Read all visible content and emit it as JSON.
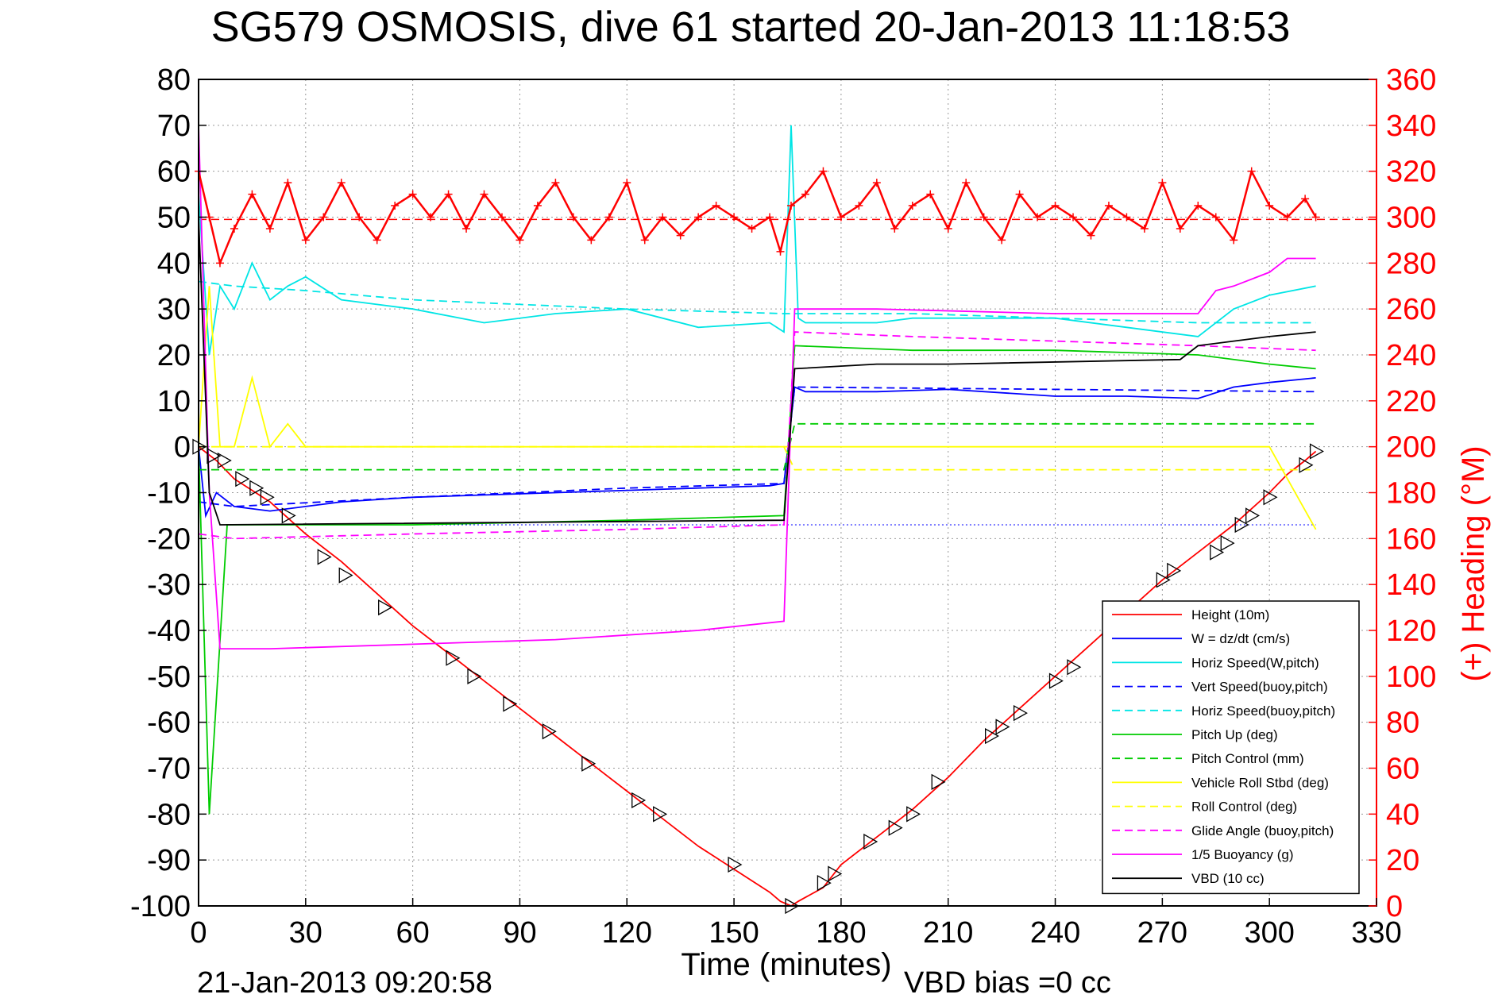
{
  "chart_data": {
    "type": "line",
    "title": "SG579 OSMOSIS, dive 61 started 20-Jan-2013 11:18:53",
    "xlabel": "Time (minutes)",
    "ylabel": "",
    "y2label": "(+) Heading (°M)",
    "xlim": [
      0,
      330
    ],
    "ylim": [
      -100,
      80
    ],
    "y2lim": [
      0,
      360
    ],
    "grid": true,
    "legend_position": "bottom-right",
    "x_ticks": [
      "0",
      "30",
      "60",
      "90",
      "120",
      "150",
      "180",
      "210",
      "240",
      "270",
      "300",
      "330"
    ],
    "y_ticks": [
      "80",
      "70",
      "60",
      "50",
      "40",
      "30",
      "20",
      "10",
      "0",
      "-10",
      "-20",
      "-30",
      "-40",
      "-50",
      "-60",
      "-70",
      "-80",
      "-90",
      "-100"
    ],
    "y2_ticks": [
      "360",
      "340",
      "320",
      "300",
      "280",
      "260",
      "240",
      "220",
      "200",
      "180",
      "160",
      "140",
      "120",
      "100",
      "80",
      "60",
      "40",
      "20",
      "0"
    ],
    "footer_left": "21-Jan-2013 09:20:58",
    "footer_right": "VBD bias =0 cc",
    "series": [
      {
        "name": "Height (10m)",
        "color": "#ff0000",
        "style": "solid",
        "x": [
          0,
          5,
          10,
          20,
          30,
          40,
          50,
          60,
          70,
          80,
          90,
          100,
          110,
          120,
          130,
          140,
          150,
          160,
          163,
          166,
          168,
          175,
          180,
          190,
          200,
          210,
          220,
          230,
          240,
          250,
          260,
          270,
          280,
          290,
          300,
          305,
          310,
          313
        ],
        "y": [
          0,
          -3,
          -7,
          -12,
          -19,
          -25,
          -32,
          -39,
          -45,
          -51,
          -57,
          -63,
          -69,
          -75,
          -81,
          -87,
          -92,
          -97,
          -99,
          -100,
          -99,
          -96,
          -91,
          -85,
          -79,
          -72,
          -64,
          -57,
          -50,
          -43,
          -36,
          -29,
          -23,
          -17,
          -10,
          -6,
          -3,
          -1
        ]
      },
      {
        "name": "W = dz/dt (cm/s)",
        "color": "#0000ff",
        "style": "solid",
        "x": [
          0,
          2,
          5,
          10,
          20,
          30,
          40,
          60,
          80,
          100,
          120,
          140,
          160,
          164,
          167,
          170,
          190,
          210,
          240,
          260,
          280,
          290,
          300,
          313
        ],
        "y": [
          0,
          -15,
          -10,
          -13,
          -14,
          -13,
          -12,
          -11,
          -10.5,
          -10,
          -9.5,
          -9,
          -8.5,
          -8,
          13,
          12,
          12,
          12.5,
          11,
          11,
          10.5,
          13,
          14,
          15
        ]
      },
      {
        "name": "Horiz Speed(W,pitch)",
        "color": "#00e5e5",
        "style": "solid",
        "x": [
          0,
          3,
          6,
          10,
          15,
          20,
          25,
          30,
          40,
          60,
          80,
          100,
          120,
          140,
          160,
          164,
          166,
          168,
          170,
          190,
          200,
          220,
          240,
          260,
          280,
          290,
          300,
          313
        ],
        "y": [
          55,
          20,
          35,
          30,
          40,
          32,
          35,
          37,
          32,
          30,
          27,
          29,
          30,
          26,
          27,
          25,
          70,
          28,
          27,
          27,
          28,
          28,
          28,
          26,
          24,
          30,
          33,
          35
        ]
      },
      {
        "name": "Vert Speed(buoy,pitch)",
        "color": "#0000ff",
        "style": "dashed",
        "x": [
          0,
          10,
          60,
          120,
          164,
          167,
          313
        ],
        "y": [
          -12,
          -13,
          -11,
          -9,
          -8,
          13,
          12
        ]
      },
      {
        "name": "Horiz Speed(buoy,pitch)",
        "color": "#00e5e5",
        "style": "dashed",
        "x": [
          0,
          10,
          30,
          60,
          90,
          120,
          164,
          167,
          200,
          240,
          280,
          313
        ],
        "y": [
          36,
          35,
          34,
          32,
          31,
          30,
          29,
          29,
          29,
          28,
          27,
          27
        ]
      },
      {
        "name": "Pitch Up (deg)",
        "color": "#00cc00",
        "style": "solid",
        "x": [
          0,
          3,
          8,
          20,
          60,
          120,
          164,
          167,
          200,
          240,
          280,
          300,
          313
        ],
        "y": [
          0,
          -80,
          -17,
          -17,
          -17,
          -16,
          -15,
          22,
          21,
          21,
          20,
          18,
          17
        ]
      },
      {
        "name": "Pitch Control (mm)",
        "color": "#00cc00",
        "style": "dashed",
        "x": [
          0,
          5,
          164,
          167,
          313
        ],
        "y": [
          -5,
          -5,
          -5,
          5,
          5
        ]
      },
      {
        "name": "Vehicle Roll Stbd (deg)",
        "color": "#ffff00",
        "style": "solid",
        "x": [
          0,
          3,
          6,
          10,
          15,
          20,
          25,
          30,
          40,
          60,
          80,
          100,
          120,
          140,
          160,
          164,
          167,
          170,
          200,
          240,
          280,
          300,
          313
        ],
        "y": [
          0,
          35,
          0,
          0,
          15,
          0,
          5,
          0,
          0,
          0,
          0,
          0,
          0,
          0,
          0,
          0,
          0,
          0,
          0,
          0,
          0,
          0,
          -18
        ]
      },
      {
        "name": "Roll Control (deg)",
        "color": "#ffff00",
        "style": "dashed",
        "x": [
          0,
          10,
          30,
          60,
          90,
          120,
          164,
          167,
          200,
          240,
          280,
          313
        ],
        "y": [
          0,
          0,
          0,
          0,
          0,
          0,
          0,
          -5,
          -5,
          -5,
          -5,
          -5
        ]
      },
      {
        "name": "Glide Angle (buoy,pitch)",
        "color": "#ff00ff",
        "style": "dashed",
        "x": [
          0,
          10,
          60,
          120,
          164,
          167,
          200,
          240,
          280,
          313
        ],
        "y": [
          -19,
          -20,
          -19,
          -18,
          -17,
          25,
          24,
          23,
          22,
          21
        ]
      },
      {
        "name": "1/5 Buoyancy (g)",
        "color": "#ff00ff",
        "style": "solid",
        "x": [
          0,
          3,
          6,
          20,
          60,
          100,
          140,
          164,
          167,
          190,
          240,
          275,
          280,
          285,
          290,
          300,
          305,
          313
        ],
        "y": [
          70,
          -10,
          -44,
          -44,
          -43,
          -42,
          -40,
          -38,
          30,
          30,
          29,
          29,
          29,
          34,
          35,
          38,
          41,
          41
        ]
      },
      {
        "name": "VBD (10 cc)",
        "color": "#000000",
        "style": "solid",
        "x": [
          0,
          3,
          6,
          164,
          167,
          190,
          210,
          275,
          280,
          300,
          313
        ],
        "y": [
          50,
          -10,
          -17,
          -16,
          17,
          18,
          18,
          19,
          22,
          24,
          25
        ]
      }
    ],
    "heading": {
      "name": "(+) Heading",
      "color": "#ff0000",
      "marker": "+",
      "x": [
        0,
        3,
        6,
        10,
        15,
        20,
        25,
        30,
        35,
        40,
        45,
        50,
        55,
        60,
        65,
        70,
        75,
        80,
        85,
        90,
        95,
        100,
        105,
        110,
        115,
        120,
        125,
        130,
        135,
        140,
        145,
        150,
        155,
        160,
        163,
        166,
        170,
        175,
        180,
        185,
        190,
        195,
        200,
        205,
        210,
        215,
        220,
        225,
        230,
        235,
        240,
        245,
        250,
        255,
        260,
        265,
        270,
        275,
        280,
        285,
        290,
        295,
        300,
        305,
        310,
        313
      ],
      "y": [
        320,
        300,
        280,
        295,
        310,
        295,
        315,
        290,
        300,
        315,
        300,
        290,
        305,
        310,
        300,
        310,
        295,
        310,
        300,
        290,
        305,
        315,
        300,
        290,
        300,
        315,
        290,
        300,
        292,
        300,
        305,
        300,
        295,
        300,
        285,
        305,
        310,
        320,
        300,
        305,
        315,
        295,
        305,
        310,
        295,
        315,
        300,
        290,
        310,
        300,
        305,
        300,
        292,
        305,
        300,
        295,
        315,
        295,
        305,
        300,
        290,
        320,
        305,
        300,
        308,
        300
      ]
    },
    "heading_ref": {
      "name": "heading reference",
      "color": "#ff0000",
      "style": "dashed",
      "value": 299
    },
    "vert_ref": {
      "name": "vertical reference",
      "color": "#0000ff",
      "style": "dotted",
      "value": -17
    },
    "markers": {
      "name": "sample markers",
      "marker": "triangle",
      "color": "#000000",
      "x": [
        0,
        4,
        7,
        12,
        16,
        19,
        25,
        35,
        41,
        52,
        71,
        77,
        87,
        98,
        109,
        123,
        129,
        150,
        166,
        175,
        178,
        188,
        195,
        200,
        207,
        222,
        225,
        230,
        240,
        245,
        270,
        273,
        285,
        288,
        292,
        295,
        300,
        310,
        313
      ],
      "y": [
        0,
        -2,
        -3,
        -7,
        -9,
        -11,
        -15,
        -24,
        -28,
        -35,
        -46,
        -50,
        -56,
        -62,
        -69,
        -77,
        -80,
        -91,
        -100,
        -95,
        -93,
        -86,
        -83,
        -80,
        -73,
        -63,
        -61,
        -58,
        -51,
        -48,
        -29,
        -27,
        -23,
        -21,
        -17,
        -15,
        -11,
        -4,
        -1
      ]
    }
  }
}
